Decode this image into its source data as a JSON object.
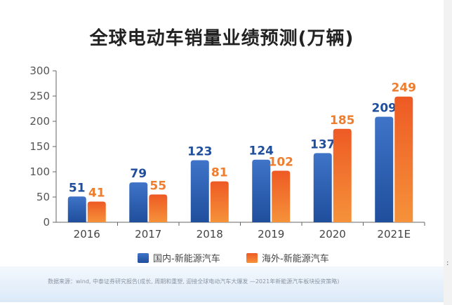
{
  "title": "全球电动车销量业绩预测(万辆)",
  "source_note": "数据来源：wind, 中泰证券研究报告(成长, 周期和重塑, 迎接全球电动汽车大爆发 —2021年新能源汽车板块投资策略)",
  "edge_mark": ":",
  "colors": {
    "domestic": "#1f4e9c",
    "domestic_light": "#3f74c8",
    "overseas": "#ee5a24",
    "overseas_light": "#f5923a",
    "domestic_label": "#1f4e9c",
    "overseas_label": "#ef7d2e"
  },
  "chart_data": {
    "type": "bar",
    "title": "全球电动车销量业绩预测(万辆)",
    "categories": [
      "2016",
      "2017",
      "2018",
      "2019",
      "2020",
      "2021E"
    ],
    "series": [
      {
        "name": "国内-新能源汽车",
        "values": [
          51,
          79,
          123,
          124,
          137,
          209
        ]
      },
      {
        "name": "海外-新能源汽车",
        "values": [
          41,
          55,
          81,
          102,
          185,
          249
        ]
      }
    ],
    "yticks": [
      0,
      50,
      100,
      150,
      200,
      250,
      300
    ],
    "ylim": [
      0,
      300
    ],
    "grid": false,
    "legend_position": "bottom",
    "data_labels": true
  }
}
